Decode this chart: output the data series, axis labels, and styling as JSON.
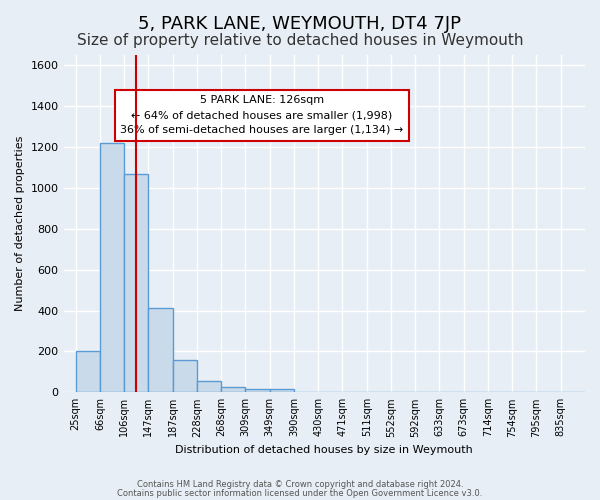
{
  "title": "5, PARK LANE, WEYMOUTH, DT4 7JP",
  "subtitle": "Size of property relative to detached houses in Weymouth",
  "xlabel": "Distribution of detached houses by size in Weymouth",
  "ylabel": "Number of detached properties",
  "footer_line1": "Contains HM Land Registry data © Crown copyright and database right 2024.",
  "footer_line2": "Contains public sector information licensed under the Open Government Licence v3.0.",
  "bin_labels": [
    "25sqm",
    "66sqm",
    "106sqm",
    "147sqm",
    "187sqm",
    "228sqm",
    "268sqm",
    "309sqm",
    "349sqm",
    "390sqm",
    "430sqm",
    "471sqm",
    "511sqm",
    "552sqm",
    "592sqm",
    "633sqm",
    "673sqm",
    "714sqm",
    "754sqm",
    "795sqm",
    "835sqm"
  ],
  "bar_heights": [
    200,
    1220,
    1070,
    410,
    160,
    55,
    28,
    15,
    15,
    0,
    0,
    0,
    0,
    0,
    0,
    0,
    0,
    0,
    0,
    0,
    0
  ],
  "bar_color": "#c9daea",
  "bar_edge_color": "#5b9bd5",
  "bar_edge_width": 1.0,
  "marker_color": "#cc0000",
  "annotation_title": "5 PARK LANE: 126sqm",
  "annotation_line1": "← 64% of detached houses are smaller (1,998)",
  "annotation_line2": "36% of semi-detached houses are larger (1,134) →",
  "annotation_box_color": "#ffffff",
  "annotation_box_edgecolor": "#cc0000",
  "ylim": [
    0,
    1650
  ],
  "yticks": [
    0,
    200,
    400,
    600,
    800,
    1000,
    1200,
    1400,
    1600
  ],
  "background_color": "#e8eef5",
  "plot_background_color": "#e8eef5",
  "grid_color": "#ffffff",
  "title_fontsize": 13,
  "subtitle_fontsize": 11
}
